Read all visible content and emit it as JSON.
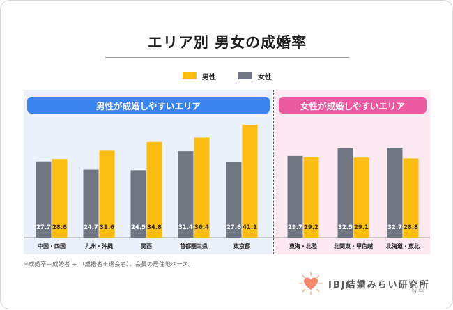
{
  "title": "エリア別 男女の成婚率",
  "legend": {
    "male": "男性",
    "female": "女性"
  },
  "colors": {
    "male": "#fdbd12",
    "female": "#717782",
    "banner_left": "#3a85f0",
    "banner_right": "#ee5aa2",
    "panel_left": "#eaf1fb",
    "panel_right": "#fde9f2"
  },
  "banners": {
    "left": "男性が成婚しやすいエリア",
    "right": "女性が成婚しやすいエリア"
  },
  "footnote": "※成婚率＝成婚者 ÷ （成婚者＋退会者）。会員の居住地ベース。",
  "brand": {
    "name": "IBJ結婚みらい研究所",
    "sub": "by IBJ"
  },
  "chart_data": {
    "type": "bar",
    "categories": [
      "中国・四国",
      "九州・沖縄",
      "関西",
      "首都圏三県",
      "東京都",
      "東海・北陸",
      "北関東・甲信越",
      "北海道・東北"
    ],
    "series": [
      {
        "name": "女性",
        "values": [
          27.7,
          24.7,
          24.5,
          31.4,
          27.6,
          29.7,
          32.5,
          32.7
        ]
      },
      {
        "name": "男性",
        "values": [
          28.6,
          31.6,
          34.8,
          36.4,
          41.1,
          29.2,
          29.1,
          28.8
        ]
      }
    ],
    "title": "エリア別 男女の成婚率",
    "xlabel": "",
    "ylabel": "",
    "ylim": [
      0,
      45
    ],
    "grid": false,
    "legend_position": "top-center"
  }
}
